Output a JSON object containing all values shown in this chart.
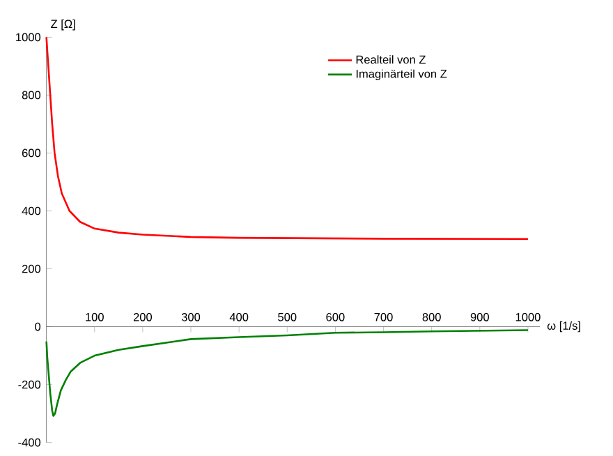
{
  "chart_data": {
    "type": "line",
    "xlabel": "ω [1/s]",
    "ylabel": "Z [Ω]",
    "xlim": [
      0,
      1025
    ],
    "ylim": [
      -400,
      1000
    ],
    "xticks": [
      100,
      200,
      300,
      400,
      500,
      600,
      700,
      800,
      900,
      1000
    ],
    "yticks": [
      -400,
      -200,
      0,
      200,
      400,
      600,
      800,
      1000
    ],
    "grid": false,
    "legend": "top right",
    "marker": "none",
    "line_style": "solid",
    "series": [
      {
        "name": "Realteil von Z",
        "color": "#ff0000",
        "x": [
          0,
          4,
          8,
          12,
          17,
          24,
          32,
          48,
          70,
          100,
          150,
          200,
          300,
          400,
          500,
          700,
          1000
        ],
        "values": [
          1000,
          900,
          800,
          700,
          600,
          520,
          460,
          400,
          362,
          339,
          325,
          318,
          310,
          307,
          306,
          304,
          303
        ]
      },
      {
        "name": "Imaginärteil von Z",
        "color": "#008000",
        "x": [
          0,
          2,
          5,
          8,
          10,
          12,
          14.5,
          18,
          22,
          30,
          40,
          50,
          70,
          100,
          150,
          200,
          300,
          400,
          500,
          600,
          700,
          800,
          900,
          1000
        ],
        "values": [
          -51,
          -110,
          -170,
          -230,
          -260,
          -290,
          -308,
          -300,
          -270,
          -220,
          -185,
          -156,
          -125,
          -100,
          -80,
          -67,
          -43,
          -36,
          -30,
          -21,
          -19,
          -16,
          -14,
          -12
        ]
      }
    ]
  }
}
